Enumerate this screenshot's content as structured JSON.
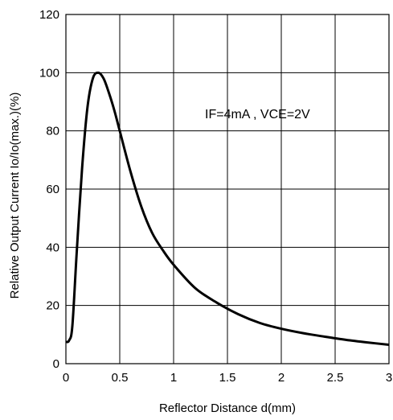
{
  "chart_data": {
    "type": "line",
    "title": "",
    "xlabel": "Reflector Distance d(mm)",
    "ylabel": "Relative Output Current Io/Io(max.)(%)",
    "xlim": [
      0,
      3
    ],
    "ylim": [
      0,
      120
    ],
    "x_ticks": [
      0,
      0.5,
      1,
      1.5,
      2,
      2.5,
      3
    ],
    "x_tick_labels": [
      "0",
      "0.5",
      "1",
      "1.5",
      "2",
      "2.5",
      "3"
    ],
    "y_ticks": [
      0,
      20,
      40,
      60,
      80,
      100,
      120
    ],
    "y_tick_labels": [
      "0",
      "20",
      "40",
      "60",
      "80",
      "100",
      "120"
    ],
    "grid": true,
    "annotation": "IF=4mA , VCE=2V",
    "line_color": "#000000",
    "series": [
      {
        "x": [
          0,
          0.03,
          0.06,
          0.1,
          0.15,
          0.2,
          0.25,
          0.3,
          0.35,
          0.4,
          0.45,
          0.5,
          0.6,
          0.7,
          0.8,
          0.9,
          1.0,
          1.2,
          1.4,
          1.6,
          1.8,
          2.0,
          2.2,
          2.4,
          2.6,
          2.8,
          3.0
        ],
        "y": [
          7.5,
          8,
          13,
          38,
          67,
          88,
          98,
          100,
          98,
          93,
          87,
          80,
          66,
          54,
          45,
          39,
          34,
          26,
          21,
          17,
          14,
          12,
          10.5,
          9.3,
          8.2,
          7.3,
          6.5
        ]
      }
    ]
  }
}
